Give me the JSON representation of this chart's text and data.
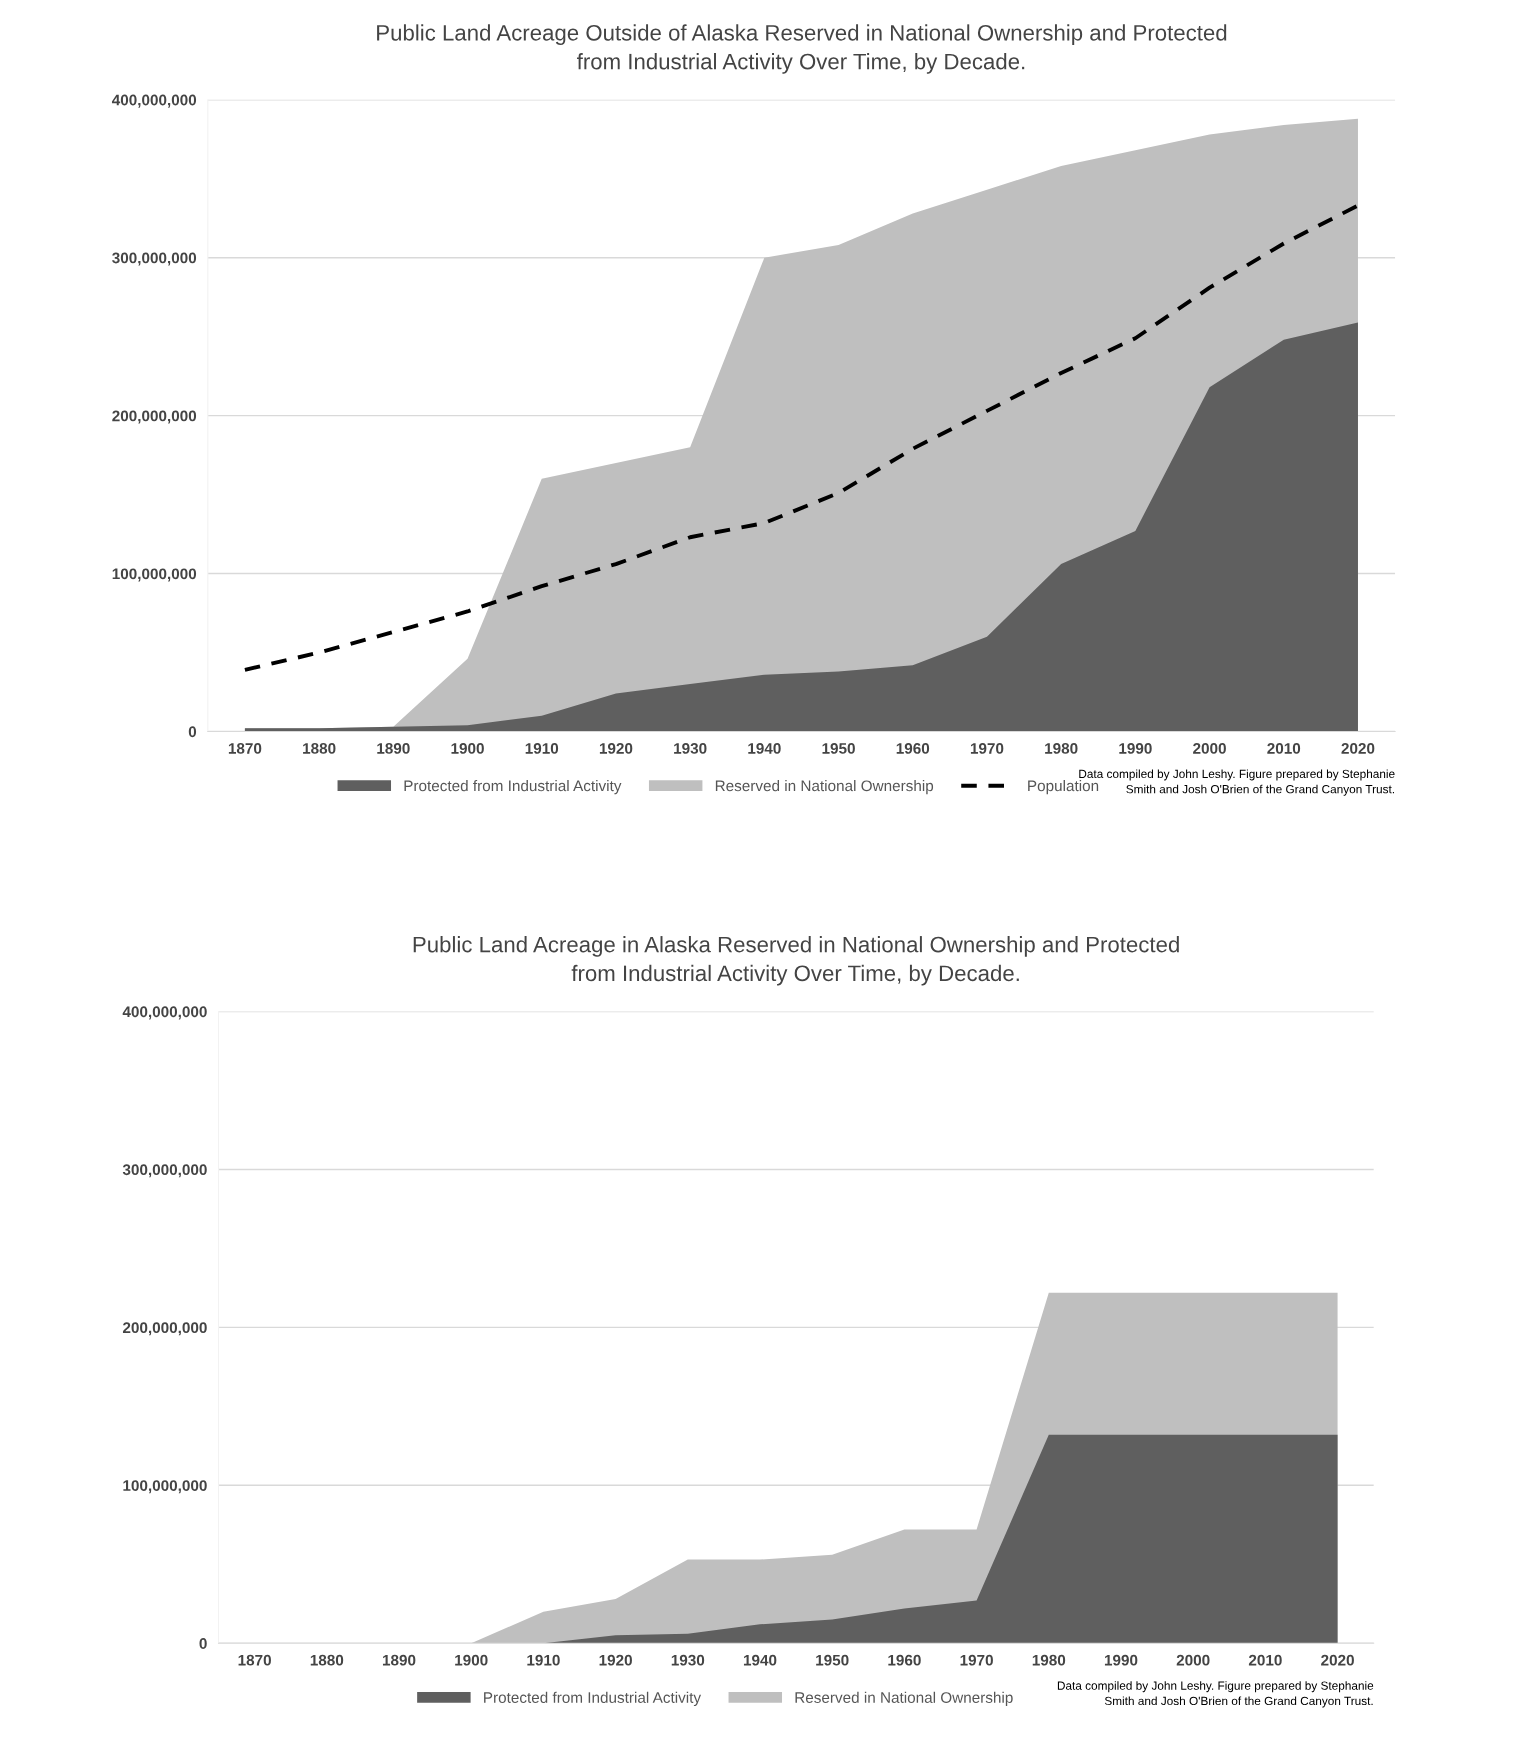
{
  "chart_data": [
    {
      "type": "area",
      "title": "Public Land Acreage Outside of Alaska Reserved in National Ownership and Protected\nfrom Industrial Activity Over Time, by Decade.",
      "categories": [
        "1870",
        "1880",
        "1890",
        "1900",
        "1910",
        "1920",
        "1930",
        "1940",
        "1950",
        "1960",
        "1970",
        "1980",
        "1990",
        "2000",
        "2010",
        "2020"
      ],
      "series": [
        {
          "name": "Protected from Industrial Activity",
          "color": "#5f5f5f",
          "values": [
            2000000,
            2000000,
            3000000,
            4000000,
            10000000,
            24000000,
            30000000,
            36000000,
            38000000,
            42000000,
            60000000,
            106000000,
            127000000,
            218000000,
            248000000,
            259000000
          ]
        },
        {
          "name": "Reserved in National Ownership",
          "color": "#bfbfbf",
          "values": [
            2000000,
            2000000,
            3000000,
            46000000,
            160000000,
            170000000,
            180000000,
            300000000,
            308000000,
            328000000,
            343000000,
            358000000,
            368000000,
            378000000,
            384000000,
            388000000
          ]
        },
        {
          "name": "Population",
          "type": "line",
          "color": "#000000",
          "line_style": "dashed",
          "values": [
            39000000,
            50000000,
            63000000,
            76000000,
            92000000,
            106000000,
            123000000,
            132000000,
            151000000,
            179000000,
            203000000,
            227000000,
            249000000,
            281000000,
            309000000,
            333000000
          ]
        }
      ],
      "ylim": [
        0,
        400000000
      ],
      "yticks": [
        {
          "value": 0,
          "label": "0"
        },
        {
          "value": 100000000,
          "label": "100,000,000"
        },
        {
          "value": 200000000,
          "label": "200,000,000"
        },
        {
          "value": 300000000,
          "label": "300,000,000"
        },
        {
          "value": 400000000,
          "label": "400,000,000"
        }
      ],
      "grid": "y",
      "legend": "bottom",
      "annotations": [
        "Data compiled by John Leshy. Figure prepared by Stephanie\nSmith and Josh O'Brien of the Grand Canyon Trust."
      ]
    },
    {
      "type": "area",
      "title": "Public Land Acreage in Alaska Reserved in National Ownership and Protected\nfrom Industrial Activity Over Time, by Decade.",
      "categories": [
        "1870",
        "1880",
        "1890",
        "1900",
        "1910",
        "1920",
        "1930",
        "1940",
        "1950",
        "1960",
        "1970",
        "1980",
        "1990",
        "2000",
        "2010",
        "2020"
      ],
      "series": [
        {
          "name": "Protected from Industrial Activity",
          "color": "#5f5f5f",
          "values": [
            0,
            0,
            0,
            0,
            0,
            5000000,
            6000000,
            12000000,
            15000000,
            22000000,
            27000000,
            132000000,
            132000000,
            132000000,
            132000000,
            132000000
          ]
        },
        {
          "name": "Reserved in National Ownership",
          "color": "#bfbfbf",
          "values": [
            0,
            0,
            0,
            0,
            20000000,
            28000000,
            53000000,
            53000000,
            56000000,
            72000000,
            72000000,
            222000000,
            222000000,
            222000000,
            222000000,
            222000000
          ]
        }
      ],
      "ylim": [
        0,
        400000000
      ],
      "yticks": [
        {
          "value": 0,
          "label": "0"
        },
        {
          "value": 100000000,
          "label": "100,000,000"
        },
        {
          "value": 200000000,
          "label": "200,000,000"
        },
        {
          "value": 300000000,
          "label": "300,000,000"
        },
        {
          "value": 400000000,
          "label": "400,000,000"
        }
      ],
      "grid": "y",
      "legend": "bottom",
      "annotations": [
        "Data compiled by John Leshy. Figure prepared by Stephanie\nSmith and Josh O'Brien of the Grand Canyon Trust."
      ]
    }
  ]
}
